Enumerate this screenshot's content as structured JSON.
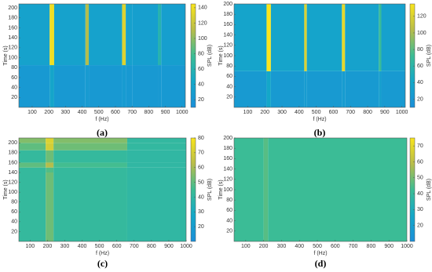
{
  "chart_data": [
    {
      "type": "heatmap",
      "caption": "(a)",
      "xlabel": "f (Hz)",
      "ylabel": "Time (s)",
      "clabel": "SPL (dB)",
      "xlim": [
        20,
        1020
      ],
      "xticks": [
        100,
        200,
        300,
        400,
        500,
        600,
        700,
        800,
        900,
        1000
      ],
      "ylim": [
        0,
        208
      ],
      "yticks": [
        20,
        40,
        60,
        80,
        100,
        120,
        140,
        160,
        180,
        200
      ],
      "clim": [
        10,
        145
      ],
      "cticks": [
        20,
        40,
        60,
        80,
        100,
        120,
        140
      ],
      "xbins": [
        20,
        205,
        232,
        420,
        440,
        640,
        662,
        700,
        855,
        875,
        1020
      ],
      "ybins": [
        0,
        85,
        208
      ],
      "z": [
        [
          24,
          40,
          24,
          26,
          24,
          26,
          24,
          24,
          24,
          24
        ],
        [
          36,
          140,
          36,
          110,
          36,
          130,
          34,
          32,
          60,
          32
        ]
      ]
    },
    {
      "type": "heatmap",
      "caption": "(b)",
      "xlabel": "f (Hz)",
      "ylabel": "Time (s)",
      "clabel": "SPL (dB)",
      "xlim": [
        20,
        1020
      ],
      "xticks": [
        100,
        200,
        300,
        400,
        500,
        600,
        700,
        800,
        900,
        1000
      ],
      "ylim": [
        0,
        200
      ],
      "yticks": [
        20,
        40,
        60,
        80,
        100,
        120,
        140,
        160,
        180,
        200
      ],
      "clim": [
        10,
        135
      ],
      "cticks": [
        20,
        40,
        60,
        80,
        100,
        120
      ],
      "xbins": [
        20,
        210,
        235,
        430,
        445,
        650,
        668,
        865,
        880,
        1020
      ],
      "ybins": [
        0,
        70,
        200
      ],
      "z": [
        [
          24,
          40,
          24,
          26,
          24,
          26,
          24,
          30,
          24
        ],
        [
          36,
          135,
          36,
          120,
          36,
          125,
          34,
          70,
          32
        ]
      ]
    },
    {
      "type": "heatmap",
      "caption": "(c)",
      "xlabel": "f (Hz)",
      "ylabel": "Time (s)",
      "clabel": "SPL (dB)",
      "xlim": [
        35,
        1000
      ],
      "xticks": [
        100,
        200,
        300,
        400,
        500,
        600,
        700,
        800,
        900,
        1000
      ],
      "ylim": [
        0,
        210
      ],
      "yticks": [
        20,
        40,
        60,
        80,
        100,
        120,
        140,
        160,
        180,
        200
      ],
      "clim": [
        10,
        80
      ],
      "cticks": [
        20,
        30,
        40,
        50,
        60,
        70,
        80
      ],
      "xbins": [
        35,
        190,
        235,
        660,
        1000
      ],
      "ybins": [
        0,
        140,
        150,
        160,
        185,
        200,
        210
      ],
      "z": [
        [
          42,
          52,
          42,
          40
        ],
        [
          42,
          48,
          42,
          40
        ],
        [
          50,
          62,
          46,
          40
        ],
        [
          42,
          52,
          42,
          40
        ],
        [
          50,
          70,
          52,
          41
        ],
        [
          55,
          72,
          55,
          41
        ]
      ]
    },
    {
      "type": "heatmap",
      "caption": "(d)",
      "xlabel": "f (Hz)",
      "ylabel": "Time (s)",
      "clabel": "SPL (dB)",
      "xlim": [
        35,
        1000
      ],
      "xticks": [
        100,
        200,
        300,
        400,
        500,
        600,
        700,
        800,
        900,
        1000
      ],
      "ylim": [
        0,
        200
      ],
      "yticks": [
        20,
        40,
        60,
        80,
        100,
        120,
        140,
        160,
        180,
        200
      ],
      "clim": [
        10,
        75
      ],
      "cticks": [
        20,
        30,
        40,
        50,
        60,
        70
      ],
      "xbins": [
        35,
        200,
        225,
        1000
      ],
      "ybins": [
        0,
        200
      ],
      "z": [
        [
          42,
          46,
          42
        ]
      ]
    }
  ]
}
